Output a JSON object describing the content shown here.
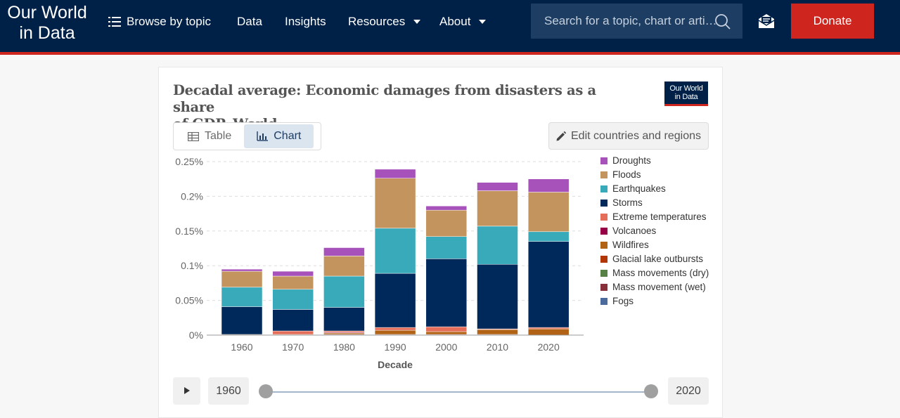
{
  "header": {
    "logo_line1": "Our World",
    "logo_line2": "in Data",
    "nav": {
      "browse": "Browse by topic",
      "data": "Data",
      "insights": "Insights",
      "resources": "Resources",
      "about": "About"
    },
    "search_placeholder": "Search for a topic, chart or arti…",
    "donate": "Donate"
  },
  "card": {
    "title_line1": "Decadal average: Economic damages from disasters as a share",
    "title_line2": "of GDP, World",
    "badge_line1": "Our World",
    "badge_line2": "in Data",
    "tab_table": "Table",
    "tab_chart": "Chart",
    "edit_label": "Edit countries and regions"
  },
  "timeline": {
    "start_year": "1960",
    "end_year": "2020"
  },
  "chart_data": {
    "type": "bar",
    "stacked": true,
    "categories": [
      "1960",
      "1970",
      "1980",
      "1990",
      "2000",
      "2010",
      "2020"
    ],
    "xlabel": "Decade",
    "ylabel": "",
    "ylim": [
      0,
      0.25
    ],
    "yticks": [
      0,
      0.05,
      0.1,
      0.15,
      0.2,
      0.25
    ],
    "ytick_labels": [
      "0%",
      "0.05%",
      "0.1%",
      "0.15%",
      "0.2%",
      "0.25%"
    ],
    "grid": true,
    "legend_position": "right",
    "series": [
      {
        "name": "Fogs",
        "color": "#4c6a9c",
        "values": [
          0,
          0,
          0,
          0,
          0,
          0,
          0
        ]
      },
      {
        "name": "Mass movement (wet)",
        "color": "#883039",
        "values": [
          0,
          0,
          0.001,
          0.001,
          0.001,
          0.001,
          0
        ]
      },
      {
        "name": "Mass movements (dry)",
        "color": "#578145",
        "values": [
          0,
          0,
          0,
          0,
          0,
          0,
          0
        ]
      },
      {
        "name": "Glacial lake outbursts",
        "color": "#b13507",
        "values": [
          0,
          0,
          0,
          0,
          0,
          0,
          0
        ]
      },
      {
        "name": "Wildfires",
        "color": "#b16214",
        "values": [
          0.001,
          0.001,
          0.002,
          0.006,
          0.004,
          0.007,
          0.009
        ]
      },
      {
        "name": "Volcanoes",
        "color": "#970046",
        "values": [
          0,
          0,
          0.001,
          0,
          0,
          0,
          0
        ]
      },
      {
        "name": "Extreme temperatures",
        "color": "#e56e5a",
        "values": [
          0,
          0.005,
          0.002,
          0.004,
          0.007,
          0.001,
          0.002
        ]
      },
      {
        "name": "Storms",
        "color": "#00295b",
        "values": [
          0.04,
          0.031,
          0.034,
          0.078,
          0.098,
          0.093,
          0.124
        ]
      },
      {
        "name": "Earthquakes",
        "color": "#38aaba",
        "values": [
          0.028,
          0.029,
          0.045,
          0.065,
          0.032,
          0.055,
          0.014
        ]
      },
      {
        "name": "Floods",
        "color": "#c3945d",
        "values": [
          0.023,
          0.019,
          0.029,
          0.072,
          0.038,
          0.051,
          0.057
        ]
      },
      {
        "name": "Droughts",
        "color": "#a652ba",
        "values": [
          0.003,
          0.007,
          0.012,
          0.013,
          0.006,
          0.012,
          0.019
        ]
      }
    ]
  }
}
